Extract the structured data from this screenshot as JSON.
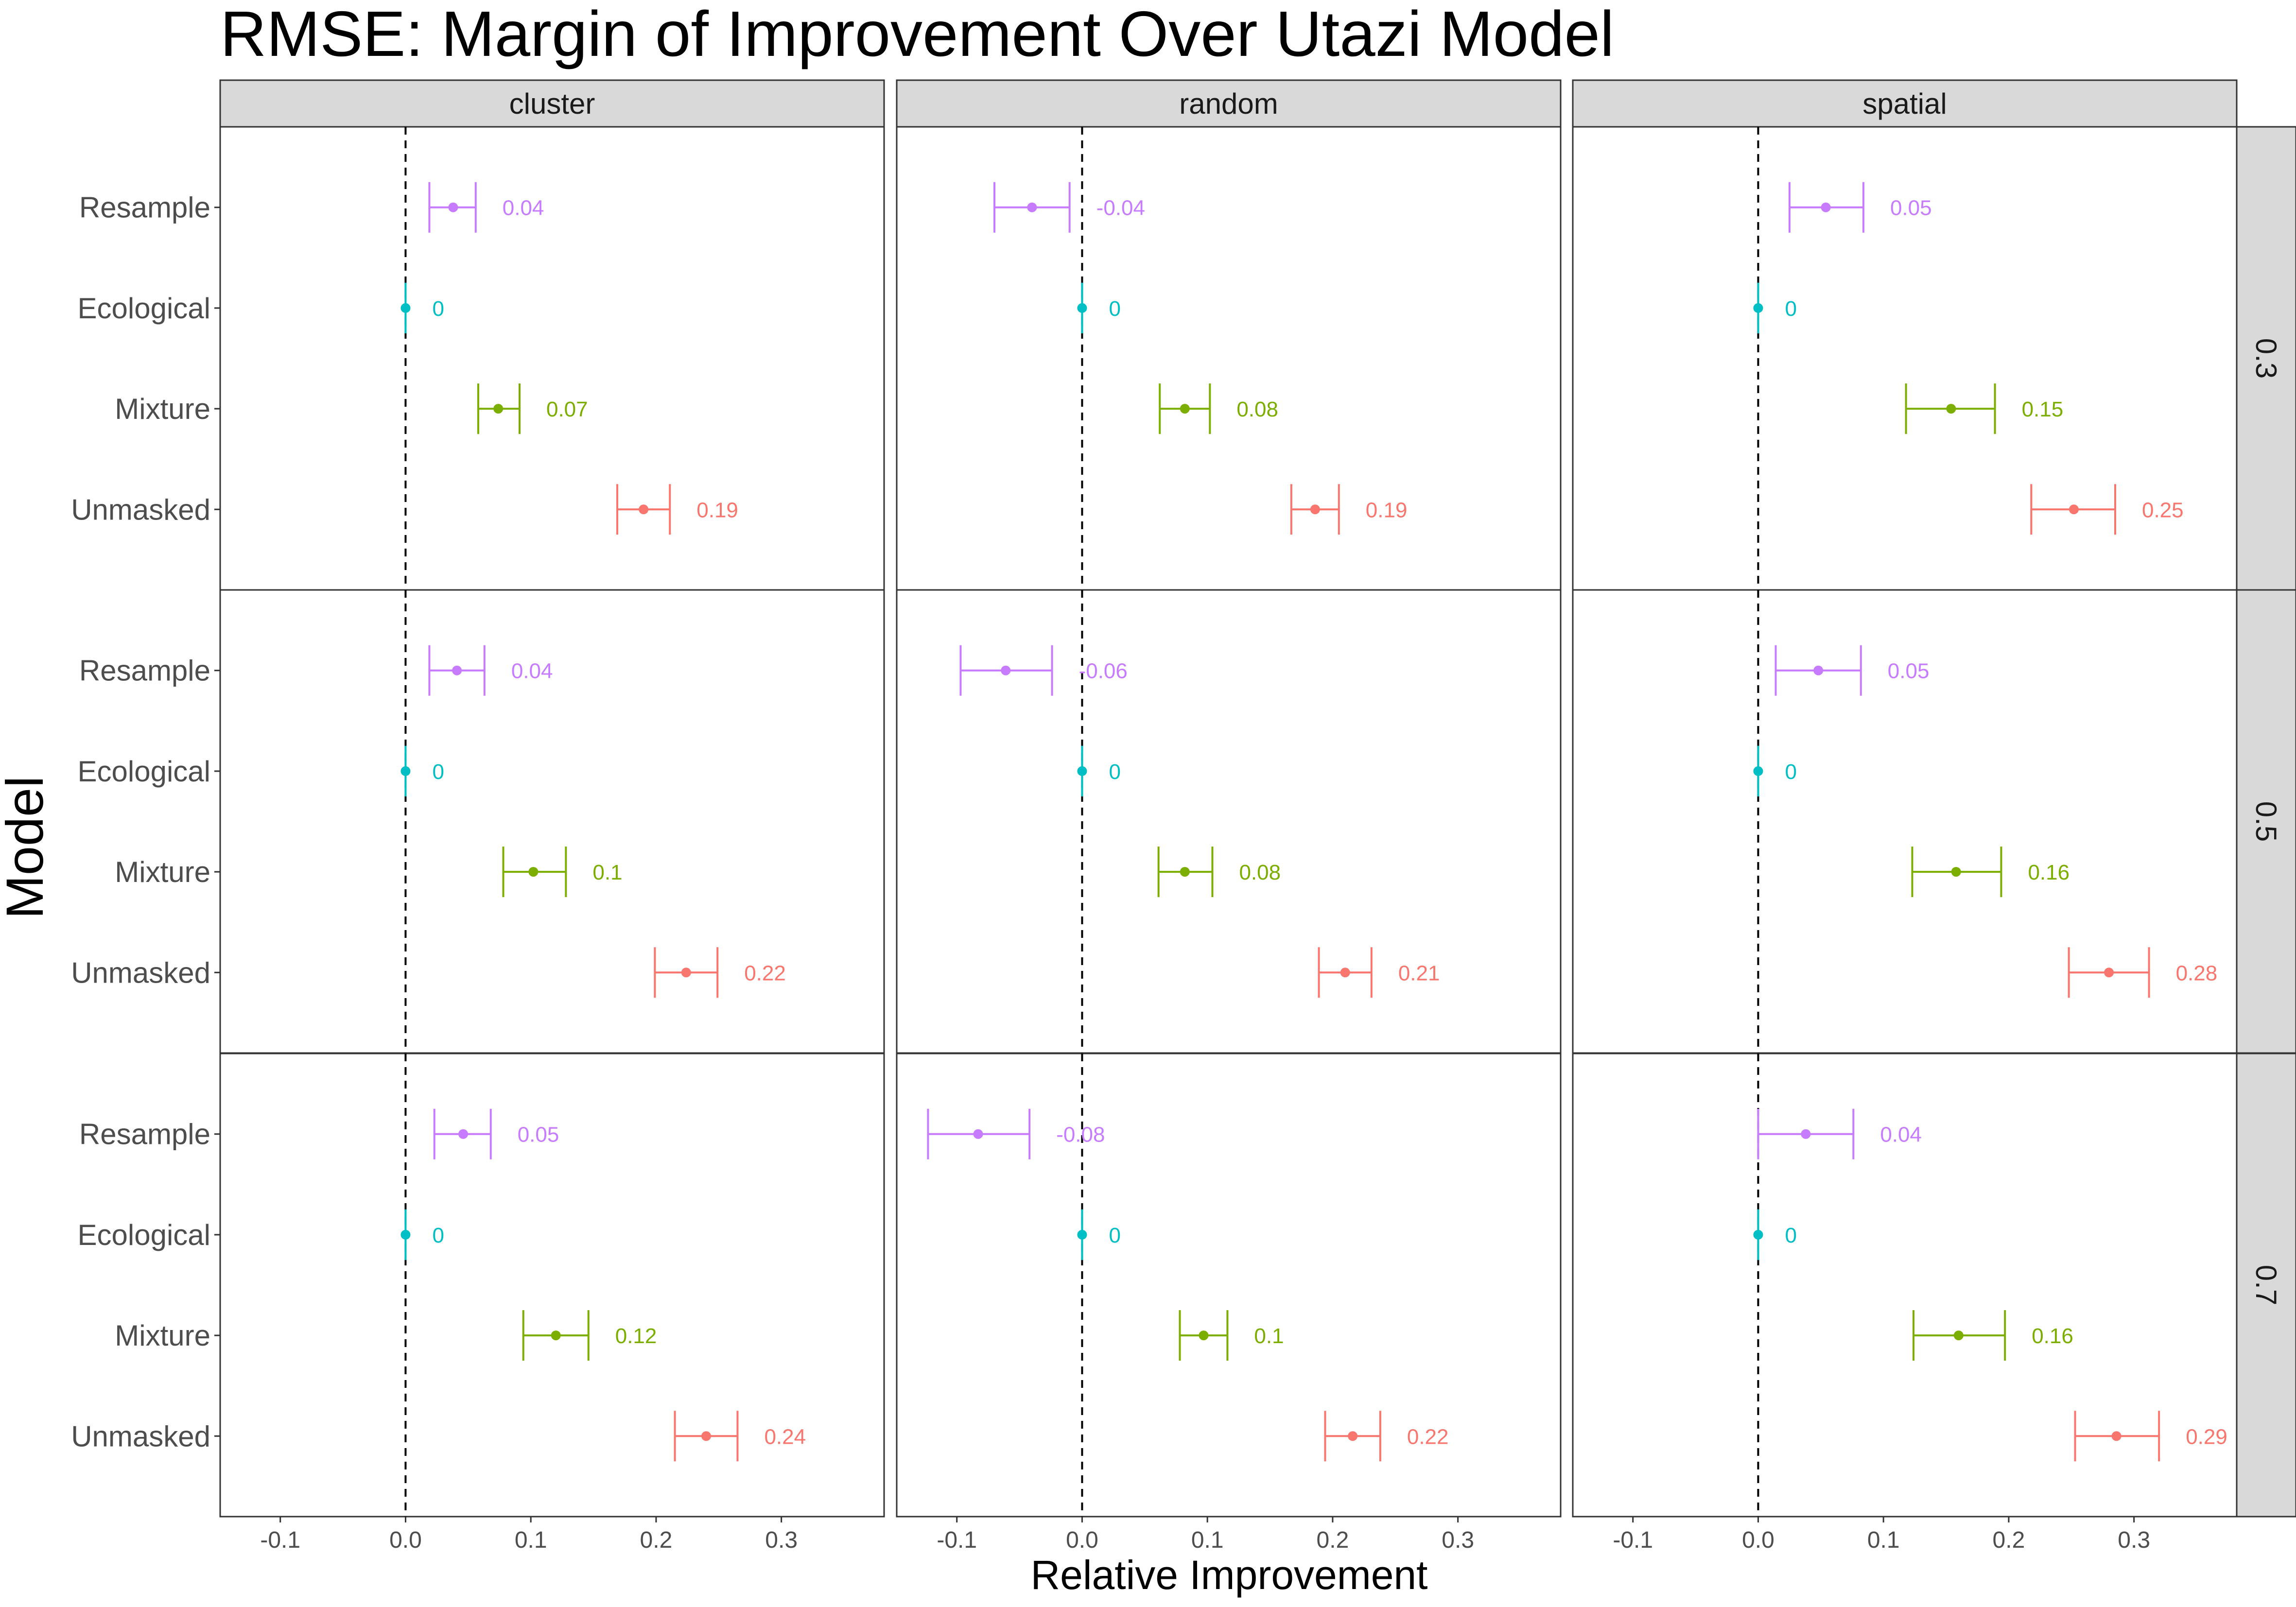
{
  "chart_data": {
    "type": "errorbar",
    "title": "RMSE: Margin of Improvement Over Utazi Model",
    "xlabel": "Relative Improvement",
    "ylabel": "Model",
    "xlim": [
      -0.148,
      0.382
    ],
    "xticks": [
      "-0.1",
      "0.0",
      "0.1",
      "0.2",
      "0.3"
    ],
    "xtick_values": [
      -0.1,
      0.0,
      0.1,
      0.2,
      0.3
    ],
    "reference_line": 0,
    "columns": [
      "cluster",
      "random",
      "spatial"
    ],
    "rows": [
      "0.3",
      "0.5",
      "0.7"
    ],
    "models": [
      "Resample",
      "Ecological",
      "Mixture",
      "Unmasked"
    ],
    "colors": {
      "Resample": "#C77CFF",
      "Ecological": "#00BFC4",
      "Mixture": "#7CAE00",
      "Unmasked": "#F8766D"
    },
    "grid": false,
    "legend": "none",
    "panels": [
      {
        "column": "cluster",
        "row": "0.3",
        "points": [
          {
            "model": "Resample",
            "value": 0.038,
            "low": 0.019,
            "high": 0.056,
            "label": "0.04"
          },
          {
            "model": "Ecological",
            "value": 0.0,
            "low": 0.0,
            "high": 0.0,
            "label": "0"
          },
          {
            "model": "Mixture",
            "value": 0.074,
            "low": 0.058,
            "high": 0.091,
            "label": "0.07"
          },
          {
            "model": "Unmasked",
            "value": 0.19,
            "low": 0.169,
            "high": 0.211,
            "label": "0.19"
          }
        ]
      },
      {
        "column": "random",
        "row": "0.3",
        "points": [
          {
            "model": "Resample",
            "value": -0.04,
            "low": -0.07,
            "high": -0.01,
            "label": "-0.04"
          },
          {
            "model": "Ecological",
            "value": 0.0,
            "low": 0.0,
            "high": 0.0,
            "label": "0"
          },
          {
            "model": "Mixture",
            "value": 0.082,
            "low": 0.062,
            "high": 0.102,
            "label": "0.08"
          },
          {
            "model": "Unmasked",
            "value": 0.186,
            "low": 0.167,
            "high": 0.205,
            "label": "0.19"
          }
        ]
      },
      {
        "column": "spatial",
        "row": "0.3",
        "points": [
          {
            "model": "Resample",
            "value": 0.054,
            "low": 0.025,
            "high": 0.084,
            "label": "0.05"
          },
          {
            "model": "Ecological",
            "value": 0.0,
            "low": 0.0,
            "high": 0.0,
            "label": "0"
          },
          {
            "model": "Mixture",
            "value": 0.154,
            "low": 0.118,
            "high": 0.189,
            "label": "0.15"
          },
          {
            "model": "Unmasked",
            "value": 0.252,
            "low": 0.218,
            "high": 0.285,
            "label": "0.25"
          }
        ]
      },
      {
        "column": "cluster",
        "row": "0.5",
        "points": [
          {
            "model": "Resample",
            "value": 0.041,
            "low": 0.019,
            "high": 0.063,
            "label": "0.04"
          },
          {
            "model": "Ecological",
            "value": 0.0,
            "low": 0.0,
            "high": 0.0,
            "label": "0"
          },
          {
            "model": "Mixture",
            "value": 0.102,
            "low": 0.078,
            "high": 0.128,
            "label": "0.1"
          },
          {
            "model": "Unmasked",
            "value": 0.224,
            "low": 0.199,
            "high": 0.249,
            "label": "0.22"
          }
        ]
      },
      {
        "column": "random",
        "row": "0.5",
        "points": [
          {
            "model": "Resample",
            "value": -0.061,
            "low": -0.097,
            "high": -0.024,
            "label": "-0.06"
          },
          {
            "model": "Ecological",
            "value": 0.0,
            "low": 0.0,
            "high": 0.0,
            "label": "0"
          },
          {
            "model": "Mixture",
            "value": 0.082,
            "low": 0.061,
            "high": 0.104,
            "label": "0.08"
          },
          {
            "model": "Unmasked",
            "value": 0.21,
            "low": 0.189,
            "high": 0.231,
            "label": "0.21"
          }
        ]
      },
      {
        "column": "spatial",
        "row": "0.5",
        "points": [
          {
            "model": "Resample",
            "value": 0.048,
            "low": 0.014,
            "high": 0.082,
            "label": "0.05"
          },
          {
            "model": "Ecological",
            "value": 0.0,
            "low": 0.0,
            "high": 0.0,
            "label": "0"
          },
          {
            "model": "Mixture",
            "value": 0.158,
            "low": 0.123,
            "high": 0.194,
            "label": "0.16"
          },
          {
            "model": "Unmasked",
            "value": 0.28,
            "low": 0.248,
            "high": 0.312,
            "label": "0.28"
          }
        ]
      },
      {
        "column": "cluster",
        "row": "0.7",
        "points": [
          {
            "model": "Resample",
            "value": 0.046,
            "low": 0.023,
            "high": 0.068,
            "label": "0.05"
          },
          {
            "model": "Ecological",
            "value": 0.0,
            "low": 0.0,
            "high": 0.0,
            "label": "0"
          },
          {
            "model": "Mixture",
            "value": 0.12,
            "low": 0.094,
            "high": 0.146,
            "label": "0.12"
          },
          {
            "model": "Unmasked",
            "value": 0.24,
            "low": 0.215,
            "high": 0.265,
            "label": "0.24"
          }
        ]
      },
      {
        "column": "random",
        "row": "0.7",
        "points": [
          {
            "model": "Resample",
            "value": -0.083,
            "low": -0.123,
            "high": -0.042,
            "label": "-0.08"
          },
          {
            "model": "Ecological",
            "value": 0.0,
            "low": 0.0,
            "high": 0.0,
            "label": "0"
          },
          {
            "model": "Mixture",
            "value": 0.097,
            "low": 0.078,
            "high": 0.116,
            "label": "0.1"
          },
          {
            "model": "Unmasked",
            "value": 0.216,
            "low": 0.194,
            "high": 0.238,
            "label": "0.22"
          }
        ]
      },
      {
        "column": "spatial",
        "row": "0.7",
        "points": [
          {
            "model": "Resample",
            "value": 0.038,
            "low": 0.0,
            "high": 0.076,
            "label": "0.04"
          },
          {
            "model": "Ecological",
            "value": 0.0,
            "low": 0.0,
            "high": 0.0,
            "label": "0"
          },
          {
            "model": "Mixture",
            "value": 0.16,
            "low": 0.124,
            "high": 0.197,
            "label": "0.16"
          },
          {
            "model": "Unmasked",
            "value": 0.286,
            "low": 0.253,
            "high": 0.32,
            "label": "0.29"
          }
        ]
      }
    ]
  }
}
